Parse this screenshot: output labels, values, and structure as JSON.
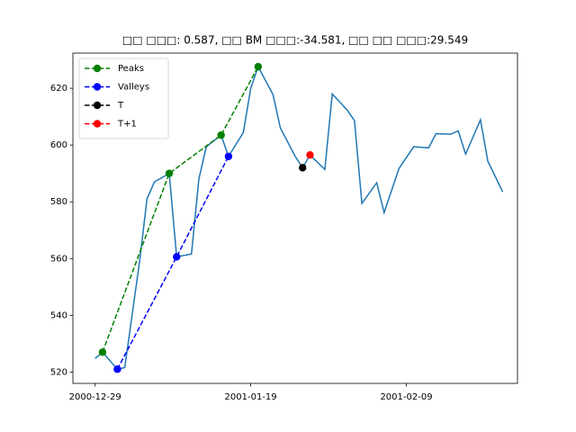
{
  "chart_data": {
    "type": "line",
    "title": "□□ □□□: 0.587, □□ BM □□□:-34.581, □□ □□ □□□:29.549",
    "color": "#1f77b4",
    "x": [
      "2000-12-29",
      "2000-12-30",
      "2001-01-01",
      "2001-01-02",
      "2001-01-04",
      "2001-01-05",
      "2001-01-06",
      "2001-01-08",
      "2001-01-09",
      "2001-01-11",
      "2001-01-12",
      "2001-01-13",
      "2001-01-15",
      "2001-01-16",
      "2001-01-18",
      "2001-01-19",
      "2001-01-20",
      "2001-01-22",
      "2001-01-23",
      "2001-01-25",
      "2001-01-26",
      "2001-01-27",
      "2001-01-29",
      "2001-01-30",
      "2001-02-01",
      "2001-02-02",
      "2001-02-03",
      "2001-02-05",
      "2001-02-06",
      "2001-02-08",
      "2001-02-09",
      "2001-02-10",
      "2001-02-12",
      "2001-02-13",
      "2001-02-15",
      "2001-02-16",
      "2001-02-17",
      "2001-02-19",
      "2001-02-20",
      "2001-02-22"
    ],
    "values": [
      524.8,
      527,
      521,
      521.6,
      559,
      581,
      587,
      590,
      560.6,
      561.6,
      588,
      599.4,
      603.5,
      596,
      604.4,
      620,
      627.6,
      617.8,
      606,
      596,
      592,
      596.5,
      591.4,
      618,
      612.4,
      608.6,
      579.4,
      586.7,
      576.2,
      591.7,
      595.6,
      599.4,
      599,
      604,
      603.8,
      605,
      596.8,
      608.9,
      594.3,
      583.5
    ],
    "series": [
      {
        "name": "Peaks",
        "color": "#008000",
        "x": [
          "2000-12-30",
          "2001-01-08",
          "2001-01-15",
          "2001-01-20"
        ],
        "values": [
          527,
          590,
          603.5,
          627.6
        ]
      },
      {
        "name": "Valleys",
        "color": "#0000ff",
        "x": [
          "2001-01-01",
          "2001-01-09",
          "2001-01-16"
        ],
        "values": [
          521,
          560.6,
          596
        ]
      },
      {
        "name": "T",
        "color": "#000000",
        "x": [
          "2001-01-26"
        ],
        "values": [
          592
        ]
      },
      {
        "name": "T+1",
        "color": "#ff0000",
        "x": [
          "2001-01-27"
        ],
        "values": [
          596.5
        ]
      }
    ],
    "xlim": [
      "2000-12-26",
      "2001-02-24"
    ],
    "xticks": [
      "2000-12-29",
      "2001-01-19",
      "2001-02-09"
    ],
    "ylim": [
      516,
      632.4
    ],
    "yticks": [
      520,
      540,
      560,
      580,
      600,
      620
    ],
    "legend": "upper left"
  }
}
